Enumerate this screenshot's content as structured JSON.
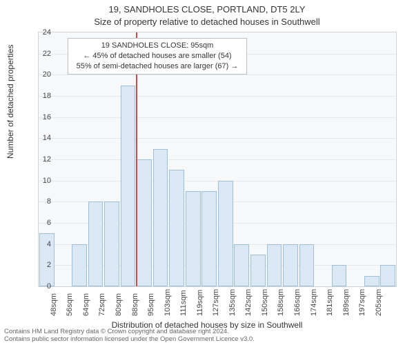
{
  "chart": {
    "type": "histogram",
    "title": "19, SANDHOLES CLOSE, PORTLAND, DT5 2LY",
    "subtitle": "Size of property relative to detached houses in Southwell",
    "xlabel": "Distribution of detached houses by size in Southwell",
    "ylabel": "Number of detached properties",
    "background_color": "#f6f8fa",
    "grid_color": "#e3e8eb",
    "axis_color": "#cfd6da",
    "bar_fill": "#dae8f5",
    "bar_stroke": "#9fbfd9",
    "marker_color": "#c0504d",
    "marker_x": "95sqm",
    "ylim": [
      0,
      24
    ],
    "ytick_step": 2,
    "title_fontsize": 13,
    "label_fontsize": 12,
    "tick_fontsize": 11,
    "categories": [
      "48sqm",
      "56sqm",
      "64sqm",
      "72sqm",
      "80sqm",
      "88sqm",
      "95sqm",
      "103sqm",
      "111sqm",
      "119sqm",
      "127sqm",
      "135sqm",
      "142sqm",
      "150sqm",
      "158sqm",
      "166sqm",
      "174sqm",
      "181sqm",
      "189sqm",
      "197sqm",
      "205sqm"
    ],
    "values": [
      5,
      0,
      4,
      8,
      8,
      19,
      12,
      13,
      11,
      9,
      9,
      10,
      4,
      3,
      4,
      4,
      4,
      0,
      2,
      0,
      1,
      2
    ],
    "bar_slots": 22,
    "annotation": {
      "line1": "19 SANDHOLES CLOSE: 95sqm",
      "line2": "← 45% of detached houses are smaller (54)",
      "line3": "55% of semi-detached houses are larger (67) →",
      "box_border": "#b8c0c5",
      "box_bg": "#ffffff"
    },
    "license": {
      "line1": "Contains HM Land Registry data © Crown copyright and database right 2024.",
      "line2": "Contains public sector information licensed under the Open Government Licence v3.0."
    }
  }
}
